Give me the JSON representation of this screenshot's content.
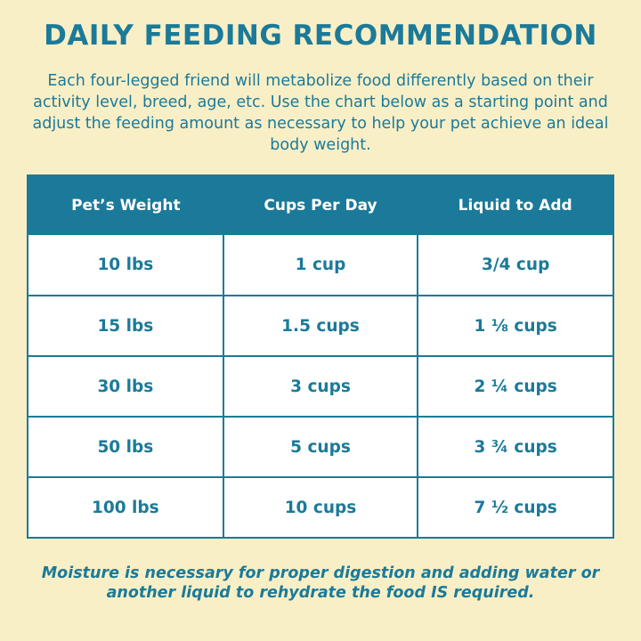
{
  "title": "DAILY FEEDING RECOMMENDATION",
  "intro": "Each four-legged friend will metabolize food differently based on their activity level, breed, age, etc. Use the chart below as a starting point and adjust the feeding amount as necessary to help your pet achieve an ideal body weight.",
  "table": {
    "headers": [
      "Pet’s Weight",
      "Cups Per Day",
      "Liquid to Add"
    ],
    "rows": [
      [
        "10 lbs",
        "1 cup",
        "3/4 cup"
      ],
      [
        "15 lbs",
        "1.5 cups",
        "1 ⅛ cups"
      ],
      [
        "30 lbs",
        "3 cups",
        "2 ¼ cups"
      ],
      [
        "50 lbs",
        "5 cups",
        "3 ¾ cups"
      ],
      [
        "100 lbs",
        "10 cups",
        "7 ½ cups"
      ]
    ]
  },
  "note": "Moisture is necessary for proper digestion and adding water or another liquid to rehydrate the food IS required.",
  "colors": {
    "background": "#f9efc6",
    "accent": "#1b7a99",
    "table_bg": "#ffffff"
  }
}
